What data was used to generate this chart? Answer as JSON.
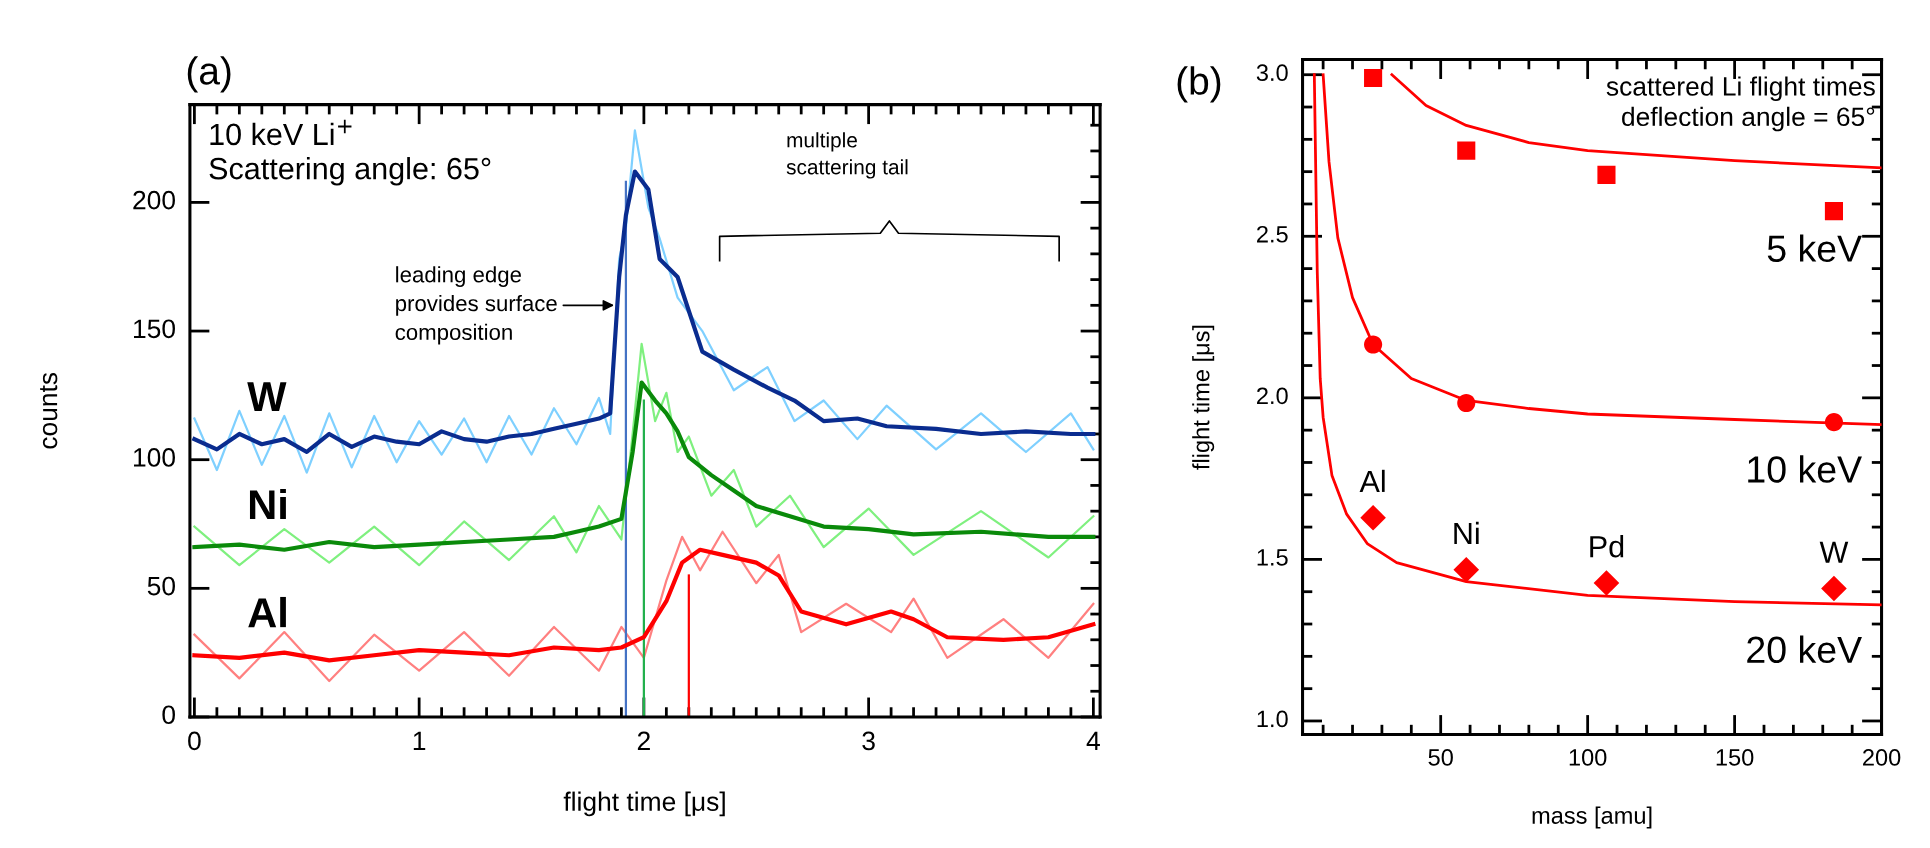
{
  "chart_data": [
    {
      "type": "line",
      "title": "(a)",
      "xlabel": "flight time [μs]",
      "ylabel": "counts",
      "xlim": [
        -0.02,
        4.03
      ],
      "ylim": [
        0,
        238
      ],
      "xticks": [
        0,
        1,
        2,
        3,
        4,
        {
          "value": 0.1,
          "label": null
        },
        {
          "value": 0.2,
          "label": null
        },
        {
          "value": 0.3,
          "label": null
        },
        {
          "value": 0.4,
          "label": null
        },
        {
          "value": 0.5,
          "label": null
        },
        {
          "value": 0.6,
          "label": null
        },
        {
          "value": 0.7,
          "label": null
        },
        {
          "value": 0.8,
          "label": null
        },
        {
          "value": 0.9,
          "label": null
        },
        {
          "value": 1.1,
          "label": null
        },
        {
          "value": 1.2,
          "label": null
        },
        {
          "value": 1.3,
          "label": null
        },
        {
          "value": 1.4,
          "label": null
        },
        {
          "value": 1.5,
          "label": null
        },
        {
          "value": 1.6,
          "label": null
        },
        {
          "value": 1.7,
          "label": null
        },
        {
          "value": 1.8,
          "label": null
        },
        {
          "value": 1.9,
          "label": null
        },
        {
          "value": 2.1,
          "label": null
        },
        {
          "value": 2.2,
          "label": null
        },
        {
          "value": 2.3,
          "label": null
        },
        {
          "value": 2.4,
          "label": null
        },
        {
          "value": 2.5,
          "label": null
        },
        {
          "value": 2.6,
          "label": null
        },
        {
          "value": 2.7,
          "label": null
        },
        {
          "value": 2.8,
          "label": null
        },
        {
          "value": 2.9,
          "label": null
        },
        {
          "value": 3.1,
          "label": null
        },
        {
          "value": 3.2,
          "label": null
        },
        {
          "value": 3.3,
          "label": null
        },
        {
          "value": 3.4,
          "label": null
        },
        {
          "value": 3.5,
          "label": null
        },
        {
          "value": 3.6,
          "label": null
        },
        {
          "value": 3.7,
          "label": null
        },
        {
          "value": 3.8,
          "label": null
        },
        {
          "value": 3.9,
          "label": null
        }
      ],
      "yticks": [
        0,
        50,
        100,
        150,
        200,
        {
          "value": 10,
          "label": null
        },
        {
          "value": 20,
          "label": null
        },
        {
          "value": 30,
          "label": null
        },
        {
          "value": 40,
          "label": null
        },
        {
          "value": 60,
          "label": null
        },
        {
          "value": 70,
          "label": null
        },
        {
          "value": 80,
          "label": null
        },
        {
          "value": 90,
          "label": null
        },
        {
          "value": 110,
          "label": null
        },
        {
          "value": 120,
          "label": null
        },
        {
          "value": 130,
          "label": null
        },
        {
          "value": 140,
          "label": null
        },
        {
          "value": 160,
          "label": null
        },
        {
          "value": 170,
          "label": null
        },
        {
          "value": 180,
          "label": null
        },
        {
          "value": 190,
          "label": null
        },
        {
          "value": 210,
          "label": null
        },
        {
          "value": 220,
          "label": null
        },
        {
          "value": 230,
          "label": null
        }
      ],
      "series": [
        {
          "color": "#7fd0ff",
          "x": [
            0,
            0.1,
            0.2,
            0.3,
            0.4,
            0.5,
            0.6,
            0.7,
            0.8,
            0.9,
            1.0,
            1.1,
            1.2,
            1.3,
            1.4,
            1.5,
            1.6,
            1.7,
            1.8,
            1.85,
            1.89,
            1.92,
            1.96,
            2.02,
            2.07,
            2.15,
            2.26,
            2.4,
            2.55,
            2.67,
            2.8,
            2.95,
            3.08,
            3.3,
            3.5,
            3.7,
            3.9,
            4.0
          ],
          "values": [
            116,
            96,
            119,
            98,
            117,
            95,
            118,
            97,
            117,
            99,
            115,
            102,
            116,
            99,
            117,
            102,
            120,
            106,
            124,
            110,
            178,
            190,
            228,
            198,
            186,
            163,
            150,
            127,
            136,
            115,
            123,
            108,
            121,
            104,
            118,
            103,
            118,
            104
          ]
        },
        {
          "color": "#7ff07f",
          "x": [
            0,
            0.2,
            0.4,
            0.6,
            0.8,
            1.0,
            1.2,
            1.4,
            1.6,
            1.7,
            1.8,
            1.9,
            1.95,
            1.99,
            2.05,
            2.1,
            2.15,
            2.2,
            2.3,
            2.4,
            2.5,
            2.65,
            2.8,
            3.0,
            3.2,
            3.5,
            3.8,
            4.0
          ],
          "values": [
            74,
            59,
            73,
            60,
            74,
            59,
            76,
            61,
            78,
            64,
            82,
            69,
            110,
            145,
            115,
            126,
            103,
            109,
            86,
            96,
            74,
            86,
            66,
            81,
            63,
            80,
            62,
            78
          ]
        },
        {
          "color": "#ff8080",
          "x": [
            0,
            0.2,
            0.4,
            0.6,
            0.8,
            1.0,
            1.2,
            1.4,
            1.6,
            1.8,
            1.9,
            2.0,
            2.1,
            2.17,
            2.25,
            2.35,
            2.5,
            2.6,
            2.7,
            2.9,
            3.1,
            3.2,
            3.35,
            3.6,
            3.8,
            4.0
          ],
          "values": [
            32,
            15,
            33,
            14,
            32,
            18,
            33,
            16,
            35,
            18,
            35,
            23,
            53,
            70,
            57,
            72,
            52,
            63,
            33,
            44,
            33,
            46,
            23,
            38,
            23,
            44
          ]
        },
        {
          "name": "W",
          "color": "#0a2c8f",
          "x": [
            0,
            0.1,
            0.2,
            0.3,
            0.4,
            0.5,
            0.6,
            0.7,
            0.8,
            0.9,
            1.0,
            1.1,
            1.2,
            1.3,
            1.4,
            1.5,
            1.6,
            1.7,
            1.8,
            1.85,
            1.89,
            1.92,
            1.96,
            2.02,
            2.07,
            2.15,
            2.26,
            2.4,
            2.55,
            2.67,
            2.8,
            2.95,
            3.08,
            3.3,
            3.5,
            3.7,
            3.9,
            4.0
          ],
          "values": [
            108,
            104,
            110,
            106,
            108,
            103,
            110,
            105,
            109,
            107,
            106,
            111,
            108,
            107,
            109,
            110,
            112,
            114,
            116,
            118,
            171,
            195,
            212,
            205,
            178,
            171,
            142,
            135,
            128,
            123,
            115,
            116,
            113,
            112,
            110,
            111,
            110,
            110
          ]
        },
        {
          "name": "Ni",
          "color": "#0a8a0a",
          "x": [
            0,
            0.2,
            0.4,
            0.6,
            0.8,
            1.0,
            1.2,
            1.4,
            1.6,
            1.7,
            1.8,
            1.9,
            1.95,
            1.99,
            2.05,
            2.1,
            2.15,
            2.2,
            2.3,
            2.4,
            2.5,
            2.65,
            2.8,
            3.0,
            3.2,
            3.5,
            3.8,
            4.0
          ],
          "values": [
            66,
            67,
            65,
            68,
            66,
            67,
            68,
            69,
            70,
            72,
            74,
            77,
            103,
            130,
            123,
            118,
            111,
            101,
            94,
            88,
            82,
            78,
            74,
            73,
            71,
            72,
            70,
            70
          ]
        },
        {
          "name": "Al",
          "color": "#ff0000",
          "x": [
            0,
            0.2,
            0.4,
            0.6,
            0.8,
            1.0,
            1.2,
            1.4,
            1.6,
            1.8,
            1.9,
            2.0,
            2.1,
            2.17,
            2.25,
            2.35,
            2.5,
            2.6,
            2.7,
            2.9,
            3.1,
            3.2,
            3.35,
            3.6,
            3.8,
            4.0
          ],
          "values": [
            24,
            23,
            25,
            22,
            24,
            26,
            25,
            24,
            27,
            26,
            27,
            31,
            45,
            60,
            65,
            63,
            60,
            55,
            41,
            36,
            41,
            38,
            31,
            30,
            31,
            36
          ]
        },
        {
          "color": "#4472c4",
          "x": [
            1.92,
            1.92
          ],
          "values": [
            0,
            208
          ]
        },
        {
          "color": "#22b04c",
          "x": [
            2.0,
            2.0
          ],
          "values": [
            0,
            123
          ]
        },
        {
          "color": "#ff0000",
          "x": [
            2.2,
            2.2
          ],
          "values": [
            0,
            55
          ]
        }
      ],
      "annotations": [
        "10 keV Li$^{+}$\nScattering angle: 65°",
        "multiple\nscattering tail",
        {
          "text": "leading edge\nprovides surface\ncomposition",
          "x": 1.88,
          "y": 160
        }
      ]
    },
    {
      "type": "scatter",
      "title": "(b)",
      "xlabel": "mass [amu]",
      "ylabel": "flight time [μs]",
      "xlim": [
        3,
        200
      ],
      "ylim": [
        0.958,
        3.047
      ],
      "xticks": [
        50,
        100,
        150,
        200,
        {
          "value": 10,
          "label": null
        },
        {
          "value": 20,
          "label": null
        },
        {
          "value": 30,
          "label": null
        },
        {
          "value": 40,
          "label": null
        },
        {
          "value": 60,
          "label": null
        },
        {
          "value": 70,
          "label": null
        },
        {
          "value": 80,
          "label": null
        },
        {
          "value": 90,
          "label": null
        },
        {
          "value": 110,
          "label": null
        },
        {
          "value": 120,
          "label": null
        },
        {
          "value": 130,
          "label": null
        },
        {
          "value": 140,
          "label": null
        },
        {
          "value": 160,
          "label": null
        },
        {
          "value": 170,
          "label": null
        },
        {
          "value": 180,
          "label": null
        },
        {
          "value": 190,
          "label": null
        }
      ],
      "yticks": [
        {
          "value": 1.0,
          "label": "1.0"
        },
        {
          "value": 1.5,
          "label": "1.5"
        },
        {
          "value": 2.0,
          "label": "2.0"
        },
        {
          "value": 2.5,
          "label": "2.5"
        },
        {
          "value": 3.0,
          "label": "3.0"
        },
        {
          "value": 1.1,
          "label": null
        },
        {
          "value": 1.2,
          "label": null
        },
        {
          "value": 1.3,
          "label": null
        },
        {
          "value": 1.4,
          "label": null
        },
        {
          "value": 1.6,
          "label": null
        },
        {
          "value": 1.7,
          "label": null
        },
        {
          "value": 1.8,
          "label": null
        },
        {
          "value": 1.9,
          "label": null
        },
        {
          "value": 2.1,
          "label": null
        },
        {
          "value": 2.2,
          "label": null
        },
        {
          "value": 2.3,
          "label": null
        },
        {
          "value": 2.4,
          "label": null
        },
        {
          "value": 2.6,
          "label": null
        },
        {
          "value": 2.7,
          "label": null
        },
        {
          "value": 2.8,
          "label": null
        },
        {
          "value": 2.9,
          "label": null
        }
      ],
      "series": [
        {
          "type": "line",
          "name": "5 keV",
          "color": "#ff0000",
          "x": [
            33.4,
            45,
            58.7,
            80,
            100,
            150,
            200
          ],
          "values": [
            3.0,
            2.905,
            2.843,
            2.79,
            2.765,
            2.734,
            2.712
          ]
        },
        {
          "type": "line",
          "name": "10 keV",
          "color": "#ff0000",
          "x": [
            10,
            12,
            15,
            20,
            27,
            40,
            58.7,
            80,
            100,
            150,
            200
          ],
          "values": [
            3.0,
            2.73,
            2.495,
            2.31,
            2.165,
            2.06,
            1.992,
            1.967,
            1.95,
            1.933,
            1.917
          ]
        },
        {
          "type": "line",
          "name": "20 keV",
          "color": "#ff0000",
          "x": [
            7,
            8,
            9,
            10,
            13,
            18,
            25,
            35,
            58.7,
            100,
            150,
            200
          ],
          "values": [
            3.0,
            2.39,
            2.06,
            1.94,
            1.76,
            1.64,
            1.549,
            1.49,
            1.431,
            1.389,
            1.369,
            1.359
          ]
        },
        {
          "type": "scatter",
          "marker": "square",
          "color": "#ff0000",
          "x": [
            27,
            58.7,
            106.4,
            183.8
          ],
          "values": [
            2.99,
            2.765,
            2.69,
            2.578
          ]
        },
        {
          "type": "scatter",
          "marker": "circle",
          "color": "#ff0000",
          "x": [
            27,
            58.7,
            183.8
          ],
          "values": [
            2.165,
            1.984,
            1.925
          ]
        },
        {
          "type": "scatter",
          "marker": "diamond",
          "color": "#ff0000",
          "x": [
            27,
            58.7,
            106.4,
            183.8
          ],
          "values": [
            1.629,
            1.468,
            1.427,
            1.41
          ]
        }
      ],
      "annotations": [
        "scattered Li flight times\ndeflection angle = 65°",
        {
          "text": "Al",
          "x": 27,
          "y": 1.629
        },
        {
          "text": "Ni",
          "x": 58.7,
          "y": 1.468
        },
        {
          "text": "Pd",
          "x": 106.4,
          "y": 1.427
        },
        {
          "text": "W",
          "x": 183.8,
          "y": 1.41
        }
      ]
    }
  ]
}
